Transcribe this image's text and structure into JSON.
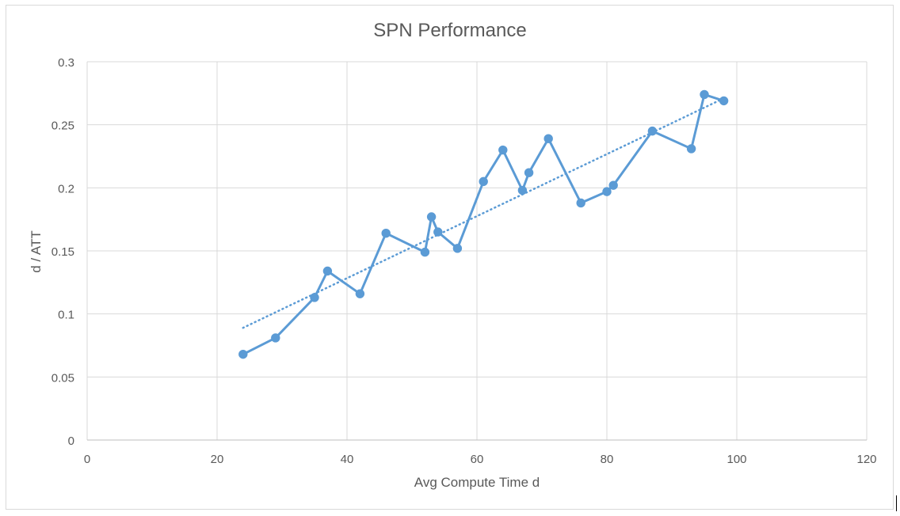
{
  "chart_data": {
    "type": "line",
    "title": "SPN Performance",
    "xlabel": "Avg Compute Time d",
    "ylabel": "d / ATT",
    "xlim": [
      0,
      120
    ],
    "ylim": [
      0,
      0.3
    ],
    "x_ticks": [
      0,
      20,
      40,
      60,
      80,
      100,
      120
    ],
    "y_ticks": [
      0,
      0.05,
      0.1,
      0.15,
      0.2,
      0.25,
      0.3
    ],
    "x_tick_labels": [
      "0",
      "20",
      "40",
      "60",
      "80",
      "100",
      "120"
    ],
    "y_tick_labels": [
      "0",
      "0.05",
      "0.1",
      "0.15",
      "0.2",
      "0.25",
      "0.3"
    ],
    "grid": true,
    "legend": "none",
    "series": [
      {
        "color": "#5b9bd5",
        "markers": true,
        "x": [
          24,
          29,
          35,
          37,
          42,
          46,
          52,
          53,
          54,
          57,
          61,
          64,
          67,
          68,
          71,
          76,
          80,
          81,
          87,
          93,
          95,
          98
        ],
        "y": [
          0.068,
          0.081,
          0.113,
          0.134,
          0.116,
          0.164,
          0.149,
          0.177,
          0.165,
          0.152,
          0.205,
          0.23,
          0.198,
          0.212,
          0.239,
          0.188,
          0.197,
          0.202,
          0.245,
          0.231,
          0.274,
          0.269
        ]
      }
    ],
    "trendline": {
      "type": "linear",
      "style": "dotted",
      "color": "#5b9bd5",
      "x": [
        24,
        98
      ],
      "y": [
        0.089,
        0.271
      ]
    }
  }
}
